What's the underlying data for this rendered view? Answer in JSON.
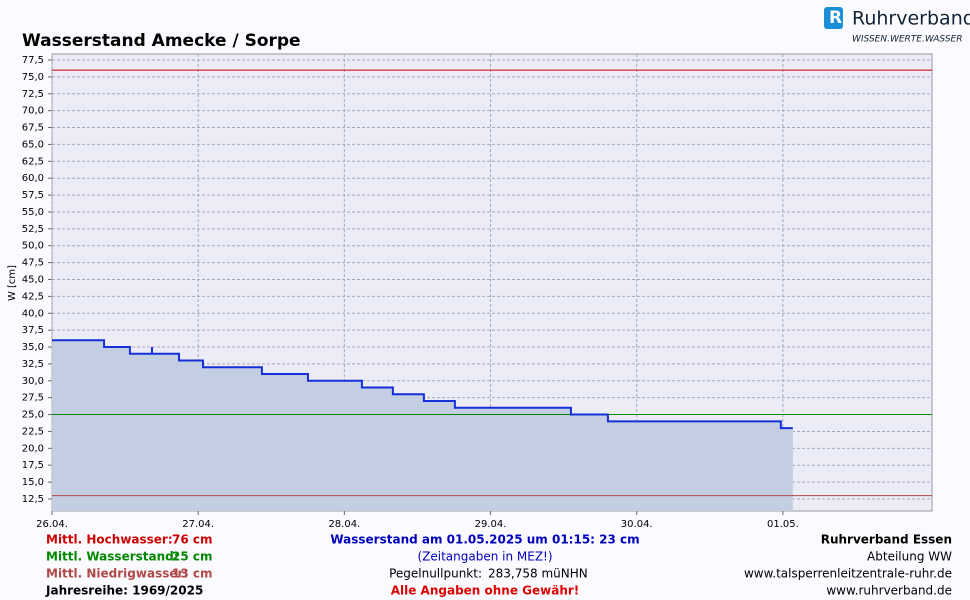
{
  "logo": {
    "name": "Ruhrverband",
    "tagline": "WISSEN.WERTE.WASSER"
  },
  "chart_data": {
    "type": "line",
    "title": "Wasserstand Amecke / Sorpe",
    "y_label": "W [cm]",
    "x": [
      0,
      0.356,
      0.356,
      0.533,
      0.533,
      0.684,
      0.684,
      0.684,
      0.869,
      0.869,
      1.033,
      1.033,
      1.436,
      1.436,
      1.751,
      1.751,
      2.12,
      2.12,
      2.332,
      2.332,
      2.544,
      2.544,
      2.756,
      2.756,
      3.55,
      3.55,
      3.803,
      3.803,
      4.986,
      4.986,
      5.068
    ],
    "series": [
      {
        "name": "Wasserstand",
        "color": "#1530d8",
        "fill": "#c3cee3",
        "values": [
          36,
          36,
          35,
          35,
          34,
          34,
          35,
          34,
          34,
          33,
          33,
          32,
          32,
          31,
          31,
          30,
          30,
          29,
          29,
          28,
          28,
          27,
          27,
          26,
          26,
          25,
          25,
          24,
          24,
          23,
          23
        ]
      }
    ],
    "xlim": [
      0,
      6.02
    ],
    "xticks": [
      {
        "value": 0,
        "label": "26.04."
      },
      {
        "value": 1,
        "label": "27.04."
      },
      {
        "value": 2,
        "label": "28.04."
      },
      {
        "value": 3,
        "label": "29.04."
      },
      {
        "value": 4,
        "label": "30.04."
      },
      {
        "value": 5,
        "label": "01.05."
      }
    ],
    "ylim": [
      10.72,
      78.39
    ],
    "yticks": [
      {
        "value": 12.5,
        "label": "12,5"
      },
      {
        "value": 15,
        "label": "15,0"
      },
      {
        "value": 17.5,
        "label": "17,5"
      },
      {
        "value": 20,
        "label": "20,0"
      },
      {
        "value": 22.5,
        "label": "22,5"
      },
      {
        "value": 25,
        "label": "25,0"
      },
      {
        "value": 27.5,
        "label": "27,5"
      },
      {
        "value": 30,
        "label": "30,0"
      },
      {
        "value": 32.5,
        "label": "32,5"
      },
      {
        "value": 35,
        "label": "35,0"
      },
      {
        "value": 37.5,
        "label": "37,5"
      },
      {
        "value": 40,
        "label": "40,0"
      },
      {
        "value": 42.5,
        "label": "42,5"
      },
      {
        "value": 45,
        "label": "45,0"
      },
      {
        "value": 47.5,
        "label": "47,5"
      },
      {
        "value": 50,
        "label": "50,0"
      },
      {
        "value": 52.5,
        "label": "52,5"
      },
      {
        "value": 55,
        "label": "55,0"
      },
      {
        "value": 57.5,
        "label": "57,5"
      },
      {
        "value": 60,
        "label": "60,0"
      },
      {
        "value": 62.5,
        "label": "62,5"
      },
      {
        "value": 65,
        "label": "65,0"
      },
      {
        "value": 67.5,
        "label": "67,5"
      },
      {
        "value": 70,
        "label": "70,0"
      },
      {
        "value": 72.5,
        "label": "72,5"
      },
      {
        "value": 75,
        "label": "75,0"
      },
      {
        "value": 77.5,
        "label": "77,5"
      }
    ],
    "grid": true,
    "reference_lines": [
      {
        "name": "Mittl. Hochwasser:",
        "value": 76,
        "value_label": "76 cm",
        "color": "#cc0000"
      },
      {
        "name": "Mittl. Wasserstand:",
        "value": 25,
        "value_label": "25 cm",
        "color": "#008800"
      },
      {
        "name": "Mittl. Niedrigwasser:",
        "value": 13,
        "value_label": "13 cm",
        "color": "#b04848"
      }
    ]
  },
  "footer": {
    "series_years": "Jahresreihe: 1969/2025",
    "current": "Wasserstand am 01.05.2025 um 01:15: 23 cm",
    "timezone": "(Zeitangaben in MEZ!)",
    "gauge_zero_label": "Pegelnullpunkt:",
    "gauge_zero_value": "283,758 müNHN",
    "disclaimer": "Alle Angaben ohne Gewähr!",
    "org": "Ruhrverband Essen",
    "department": "Abteilung WW",
    "url1": "www.talsperrenleitzentrale-ruhr.de",
    "url2": "www.ruhrverband.de"
  }
}
